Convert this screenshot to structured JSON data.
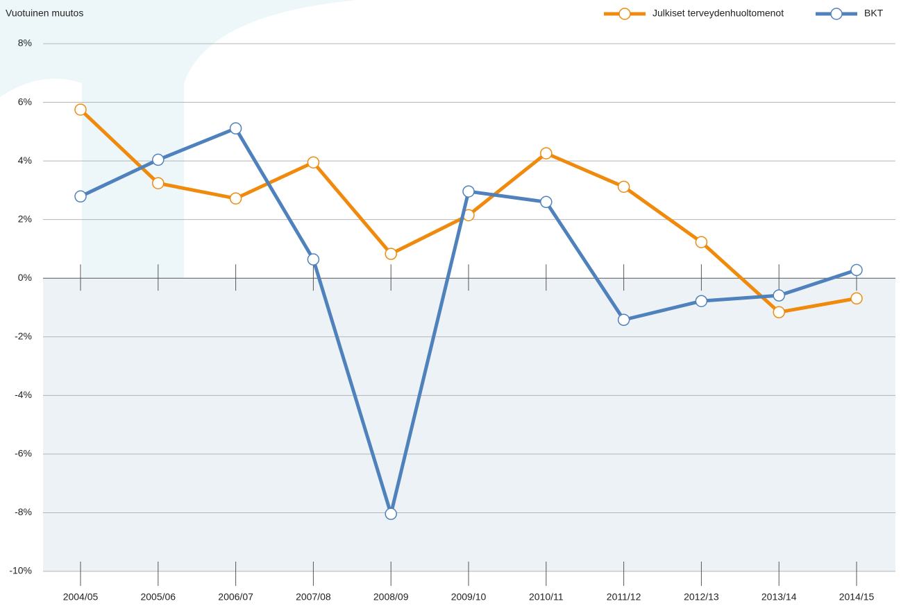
{
  "chart_data": {
    "type": "line",
    "y_label": "Vuotuinen muutos",
    "categories": [
      "2004/05",
      "2005/06",
      "2006/07",
      "2007/08",
      "2008/09",
      "2009/10",
      "2010/11",
      "2011/12",
      "2012/13",
      "2013/14",
      "2014/15"
    ],
    "series": [
      {
        "name": "Julkiset terveydenhuoltomenot",
        "color": "#ef8a0c",
        "values": [
          5.75,
          3.24,
          2.72,
          3.95,
          0.83,
          2.15,
          4.26,
          3.12,
          1.23,
          -1.16,
          -0.69
        ]
      },
      {
        "name": "BKT",
        "color": "#4f81bd",
        "values": [
          2.79,
          4.04,
          5.11,
          0.64,
          -8.04,
          2.96,
          2.6,
          -1.42,
          -0.78,
          -0.59,
          0.28
        ]
      }
    ],
    "ylim": [
      -10,
      8
    ],
    "yticks": [
      {
        "value": -10,
        "label": "-10%"
      },
      {
        "value": -8,
        "label": "-8%"
      },
      {
        "value": -6,
        "label": "-6%"
      },
      {
        "value": -4,
        "label": "-4%"
      },
      {
        "value": -2,
        "label": "-2%"
      },
      {
        "value": 0,
        "label": "0%"
      },
      {
        "value": 2,
        "label": "2%"
      },
      {
        "value": 4,
        "label": "4%"
      },
      {
        "value": 6,
        "label": "6%"
      },
      {
        "value": 8,
        "label": "8%"
      }
    ],
    "grid": true,
    "legend": "top-right"
  }
}
